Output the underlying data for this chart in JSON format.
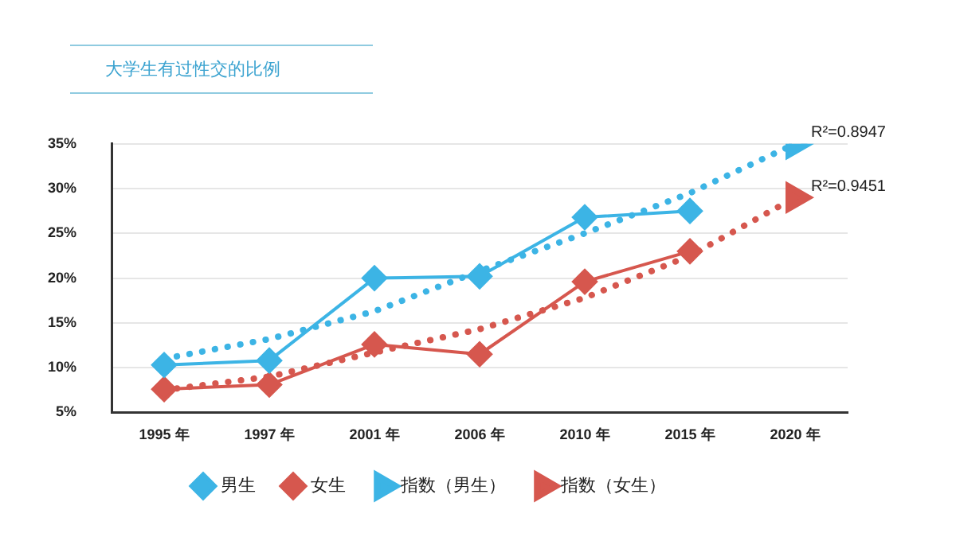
{
  "chart_data": {
    "type": "line",
    "title": "大学生有过性交的比例",
    "categories": [
      "1995 年",
      "1997 年",
      "2001 年",
      "2006 年",
      "2010 年",
      "2015 年",
      "2020 年"
    ],
    "ylim": [
      5,
      35
    ],
    "yticks": [
      {
        "value": 5,
        "label": "5%"
      },
      {
        "value": 10,
        "label": "10%"
      },
      {
        "value": 15,
        "label": "15%"
      },
      {
        "value": 20,
        "label": "20%"
      },
      {
        "value": 25,
        "label": "25%"
      },
      {
        "value": 30,
        "label": "30%"
      },
      {
        "value": 35,
        "label": "35%"
      }
    ],
    "grid": "y",
    "legend": "bottom",
    "series": [
      {
        "name": "男生",
        "color": "#3cb4e5",
        "marker": "diamond",
        "line_style": "solid",
        "values": [
          10.3,
          10.8,
          20,
          20.2,
          26.8,
          27.5,
          null
        ]
      },
      {
        "name": "女生",
        "color": "#d6574e",
        "marker": "diamond",
        "line_style": "solid",
        "values": [
          7.6,
          8.1,
          12.6,
          11.5,
          19.6,
          23,
          null
        ]
      },
      {
        "name": "指数（男生）",
        "color": "#3cb4e5",
        "marker": "none",
        "line_style": "dotted",
        "values": [
          11,
          13.2,
          16.3,
          20.8,
          25,
          29.5,
          35
        ]
      },
      {
        "name": "指数（女生）",
        "color": "#d6574e",
        "marker": "none",
        "line_style": "dotted",
        "values": [
          7.5,
          9,
          11.7,
          14.3,
          17.8,
          22.5,
          29
        ]
      }
    ],
    "annotations": [
      {
        "text": "R²=0.8947",
        "x": "2020 年",
        "y": 35
      },
      {
        "text": "R²=0.9451",
        "x": "2020 年",
        "y": 29
      }
    ]
  }
}
